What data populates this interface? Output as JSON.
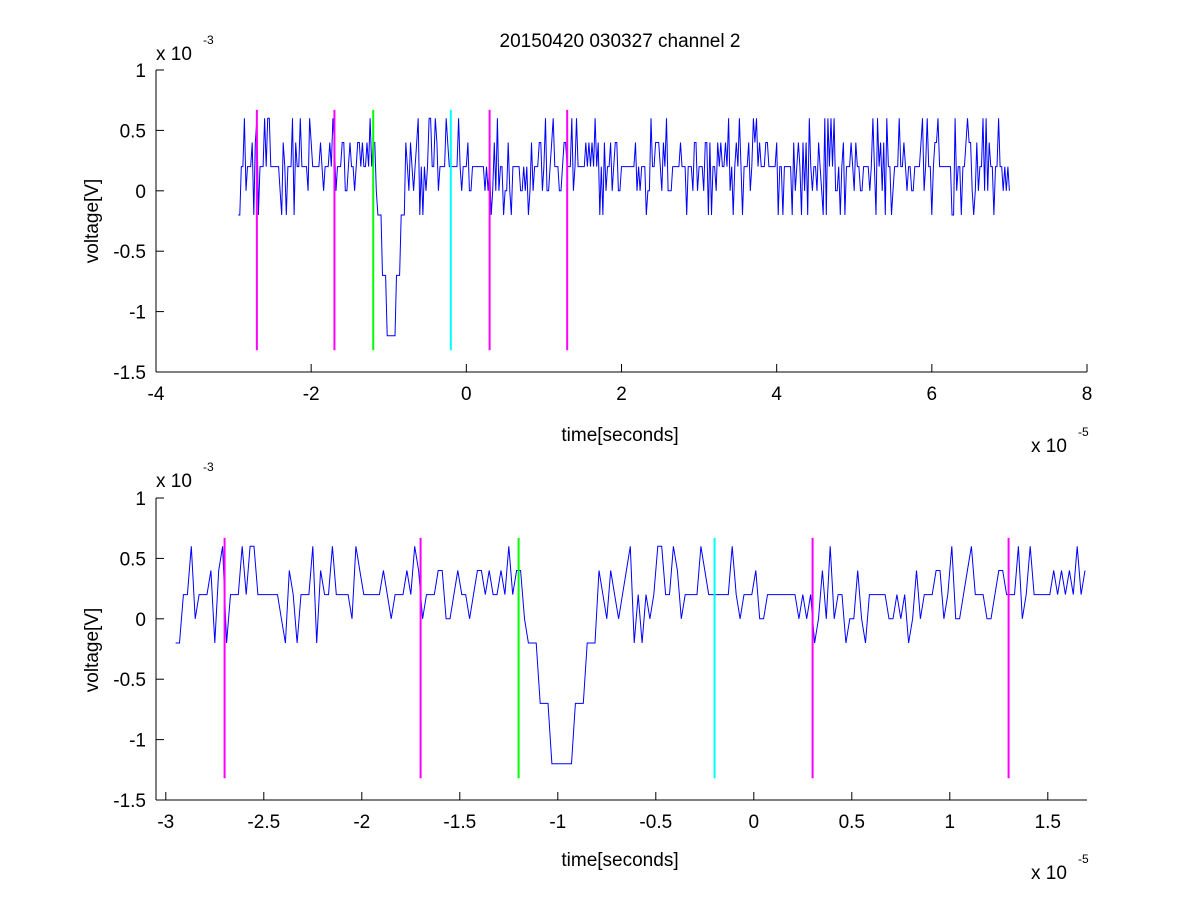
{
  "figure": {
    "title": "20150420 030327 channel 2"
  },
  "chart_data": [
    {
      "type": "line",
      "title": "20150420 030327 channel 2",
      "xlabel": "time[seconds]",
      "ylabel": "voltage[V]",
      "x_multiplier": {
        "base": "x 10",
        "exponent": "-5"
      },
      "y_multiplier": {
        "base": "x 10",
        "exponent": "-3"
      },
      "xlim": [
        -4,
        8
      ],
      "ylim": [
        -1.5,
        1
      ],
      "x_ticks": [
        -4,
        -2,
        0,
        2,
        4,
        6,
        8
      ],
      "x_tick_labels": [
        "-4",
        "-2",
        "0",
        "2",
        "4",
        "6",
        "8"
      ],
      "y_ticks": [
        -1.5,
        -1,
        -0.5,
        0,
        0.5,
        1
      ],
      "y_tick_labels": [
        "-1.5",
        "-1",
        "-0.5",
        "0",
        "0.5",
        "1"
      ],
      "grid": false,
      "signal": {
        "color": "#0000ff",
        "x_start": -2.94,
        "x_end": 7.0,
        "baseline": 0.2,
        "spike": {
          "x": -0.97,
          "min": -1.2
        }
      },
      "markers": [
        {
          "x": -2.7,
          "color": "#ff00ff",
          "y_top": 0.67,
          "y_bottom": -1.32
        },
        {
          "x": -1.7,
          "color": "#ff00ff",
          "y_top": 0.67,
          "y_bottom": -1.32
        },
        {
          "x": -1.2,
          "color": "#00ff00",
          "y_top": 0.67,
          "y_bottom": -1.32
        },
        {
          "x": -0.2,
          "color": "#00ffff",
          "y_top": 0.67,
          "y_bottom": -1.32
        },
        {
          "x": 0.3,
          "color": "#ff00ff",
          "y_top": 0.67,
          "y_bottom": -1.32
        },
        {
          "x": 1.3,
          "color": "#ff00ff",
          "y_top": 0.67,
          "y_bottom": -1.32
        }
      ]
    },
    {
      "type": "line",
      "title": "",
      "xlabel": "time[seconds]",
      "ylabel": "voltage[V]",
      "x_multiplier": {
        "base": "x 10",
        "exponent": "-5"
      },
      "y_multiplier": {
        "base": "x 10",
        "exponent": "-3"
      },
      "xlim": [
        -3.05,
        1.7
      ],
      "ylim": [
        -1.5,
        1
      ],
      "x_ticks": [
        -3,
        -2.5,
        -2,
        -1.5,
        -1,
        -0.5,
        0,
        0.5,
        1,
        1.5
      ],
      "x_tick_labels": [
        "-3",
        "-2.5",
        "-2",
        "-1.5",
        "-1",
        "-0.5",
        "0",
        "0.5",
        "1",
        "1.5"
      ],
      "y_ticks": [
        -1.5,
        -1,
        -0.5,
        0,
        0.5,
        1
      ],
      "y_tick_labels": [
        "-1.5",
        "-1",
        "-0.5",
        "0",
        "0.5",
        "1"
      ],
      "grid": false,
      "signal": {
        "color": "#0000ff",
        "x_start": -2.95,
        "x_end": 1.7,
        "baseline": 0.2,
        "spike": {
          "x": -0.97,
          "min": -1.2
        }
      },
      "markers": [
        {
          "x": -2.7,
          "color": "#ff00ff",
          "y_top": 0.67,
          "y_bottom": -1.32
        },
        {
          "x": -1.7,
          "color": "#ff00ff",
          "y_top": 0.67,
          "y_bottom": -1.32
        },
        {
          "x": -1.2,
          "color": "#00ff00",
          "y_top": 0.67,
          "y_bottom": -1.32
        },
        {
          "x": -0.2,
          "color": "#00ffff",
          "y_top": 0.67,
          "y_bottom": -1.32
        },
        {
          "x": 0.3,
          "color": "#ff00ff",
          "y_top": 0.67,
          "y_bottom": -1.32
        },
        {
          "x": 1.3,
          "color": "#ff00ff",
          "y_top": 0.67,
          "y_bottom": -1.32
        }
      ]
    }
  ]
}
